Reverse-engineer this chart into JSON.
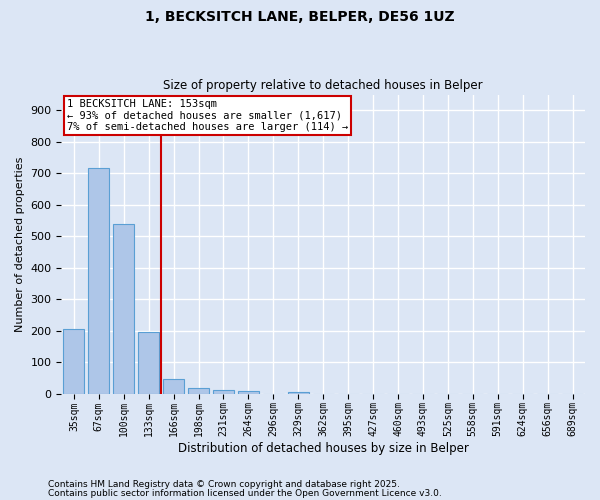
{
  "title": "1, BECKSITCH LANE, BELPER, DE56 1UZ",
  "subtitle": "Size of property relative to detached houses in Belper",
  "xlabel": "Distribution of detached houses by size in Belper",
  "ylabel": "Number of detached properties",
  "bar_labels": [
    "35sqm",
    "67sqm",
    "100sqm",
    "133sqm",
    "166sqm",
    "198sqm",
    "231sqm",
    "264sqm",
    "296sqm",
    "329sqm",
    "362sqm",
    "395sqm",
    "427sqm",
    "460sqm",
    "493sqm",
    "525sqm",
    "558sqm",
    "591sqm",
    "624sqm",
    "656sqm",
    "689sqm"
  ],
  "bar_values": [
    205,
    718,
    540,
    196,
    46,
    17,
    11,
    8,
    0,
    5,
    0,
    0,
    0,
    0,
    0,
    0,
    0,
    0,
    0,
    0,
    0
  ],
  "bar_color": "#aec6e8",
  "bar_edgecolor": "#5a9fd4",
  "fig_bg_color": "#dce6f5",
  "axes_bg_color": "#dce6f5",
  "grid_color": "#ffffff",
  "red_line_x": 3.5,
  "annotation_line1": "1 BECKSITCH LANE: 153sqm",
  "annotation_line2": "← 93% of detached houses are smaller (1,617)",
  "annotation_line3": "7% of semi-detached houses are larger (114) →",
  "annotation_box_facecolor": "#ffffff",
  "annotation_box_edgecolor": "#cc0000",
  "ylim": [
    0,
    950
  ],
  "yticks": [
    0,
    100,
    200,
    300,
    400,
    500,
    600,
    700,
    800,
    900
  ],
  "footer_line1": "Contains HM Land Registry data © Crown copyright and database right 2025.",
  "footer_line2": "Contains public sector information licensed under the Open Government Licence v3.0."
}
